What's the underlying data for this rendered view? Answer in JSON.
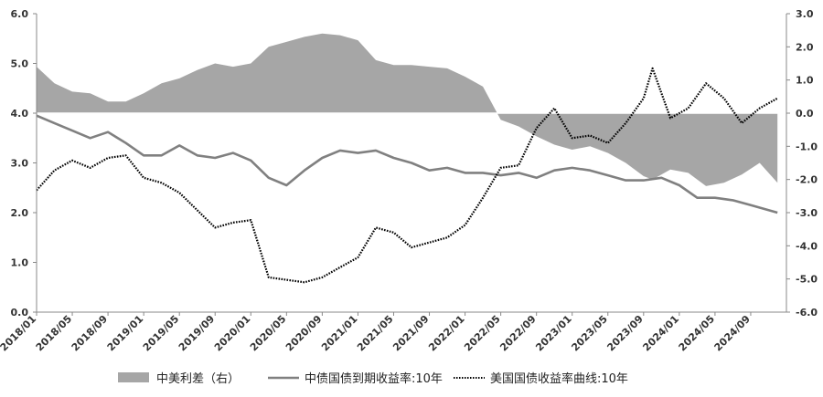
{
  "chart_data": {
    "type": "line",
    "title": "",
    "xlabel": "",
    "ylabel": "",
    "x_range": [
      "2018-01",
      "2024-12"
    ],
    "ylim_left": [
      0,
      6
    ],
    "ylim_right": [
      -6,
      3
    ],
    "y_ticks_left": [
      "6.0",
      "5.0",
      "4.0",
      "3.0",
      "2.0",
      "1.0",
      "0.0"
    ],
    "y_ticks_right": [
      "3.0",
      "2.0",
      "1.0",
      "0.0",
      "-1.0",
      "-2.0",
      "-3.0",
      "-4.0",
      "-5.0",
      "-6.0"
    ],
    "x_ticks": [
      "2018/01",
      "2018/05",
      "2018/09",
      "2019/01",
      "2019/05",
      "2019/09",
      "2020/01",
      "2020/05",
      "2020/09",
      "2021/01",
      "2021/05",
      "2021/09",
      "2022/01",
      "2022/05",
      "2022/09",
      "2023/01",
      "2023/05",
      "2023/09",
      "2024/01",
      "2024/05",
      "2024/09"
    ],
    "grid": false,
    "legend_position": "bottom",
    "legend": [
      "中美利差（右）",
      "中债国债到期收益率:10年",
      "美国国债收益率曲线:10年"
    ],
    "colors": {
      "spread": "#a6a6a6",
      "china": "#808080",
      "us": "#000000"
    },
    "series": [
      {
        "name": "中美利差（右）",
        "style": "area",
        "axis": "right",
        "x": [
          "2018-01",
          "2018-03",
          "2018-05",
          "2018-07",
          "2018-09",
          "2018-11",
          "2019-01",
          "2019-03",
          "2019-05",
          "2019-07",
          "2019-09",
          "2019-11",
          "2020-01",
          "2020-03",
          "2020-05",
          "2020-07",
          "2020-09",
          "2020-11",
          "2021-01",
          "2021-03",
          "2021-05",
          "2021-07",
          "2021-09",
          "2021-11",
          "2022-01",
          "2022-03",
          "2022-04",
          "2022-05",
          "2022-07",
          "2022-09",
          "2022-11",
          "2023-01",
          "2023-03",
          "2023-05",
          "2023-07",
          "2023-09",
          "2023-10",
          "2023-12",
          "2024-02",
          "2024-04",
          "2024-06",
          "2024-08",
          "2024-10",
          "2024-12"
        ],
        "values": [
          1.4,
          0.9,
          0.65,
          0.6,
          0.35,
          0.35,
          0.6,
          0.9,
          1.05,
          1.3,
          1.5,
          1.4,
          1.5,
          2.0,
          2.15,
          2.3,
          2.4,
          2.35,
          2.2,
          1.6,
          1.45,
          1.45,
          1.4,
          1.35,
          1.1,
          0.8,
          0.3,
          -0.2,
          -0.4,
          -0.7,
          -0.95,
          -1.1,
          -1.0,
          -1.2,
          -1.5,
          -1.9,
          -2.0,
          -1.7,
          -1.8,
          -2.2,
          -2.1,
          -1.85,
          -1.5,
          -2.1
        ]
      },
      {
        "name": "中债国债到期收益率:10年",
        "style": "solid",
        "axis": "left",
        "x": [
          "2018-01",
          "2018-03",
          "2018-05",
          "2018-07",
          "2018-09",
          "2018-11",
          "2019-01",
          "2019-03",
          "2019-05",
          "2019-07",
          "2019-09",
          "2019-11",
          "2020-01",
          "2020-03",
          "2020-05",
          "2020-07",
          "2020-09",
          "2020-11",
          "2021-01",
          "2021-03",
          "2021-05",
          "2021-07",
          "2021-09",
          "2021-11",
          "2022-01",
          "2022-03",
          "2022-05",
          "2022-07",
          "2022-09",
          "2022-11",
          "2023-01",
          "2023-03",
          "2023-05",
          "2023-07",
          "2023-09",
          "2023-11",
          "2024-01",
          "2024-03",
          "2024-05",
          "2024-07",
          "2024-09",
          "2024-11",
          "2024-12"
        ],
        "values": [
          3.95,
          3.8,
          3.65,
          3.5,
          3.62,
          3.4,
          3.15,
          3.15,
          3.35,
          3.15,
          3.1,
          3.2,
          3.05,
          2.7,
          2.55,
          2.85,
          3.1,
          3.25,
          3.2,
          3.25,
          3.1,
          3.0,
          2.85,
          2.9,
          2.8,
          2.8,
          2.75,
          2.8,
          2.7,
          2.85,
          2.9,
          2.85,
          2.75,
          2.65,
          2.65,
          2.7,
          2.55,
          2.3,
          2.3,
          2.25,
          2.15,
          2.05,
          2.0
        ]
      },
      {
        "name": "美国国债收益率曲线:10年",
        "style": "dotted",
        "axis": "left",
        "x": [
          "2018-01",
          "2018-03",
          "2018-05",
          "2018-07",
          "2018-09",
          "2018-11",
          "2019-01",
          "2019-03",
          "2019-05",
          "2019-07",
          "2019-09",
          "2019-11",
          "2020-01",
          "2020-03",
          "2020-05",
          "2020-07",
          "2020-09",
          "2020-11",
          "2021-01",
          "2021-03",
          "2021-05",
          "2021-07",
          "2021-09",
          "2021-11",
          "2022-01",
          "2022-03",
          "2022-05",
          "2022-07",
          "2022-09",
          "2022-11",
          "2023-01",
          "2023-03",
          "2023-05",
          "2023-07",
          "2023-09",
          "2023-10",
          "2023-12",
          "2024-02",
          "2024-04",
          "2024-06",
          "2024-08",
          "2024-10",
          "2024-12"
        ],
        "values": [
          2.45,
          2.85,
          3.05,
          2.9,
          3.1,
          3.15,
          2.7,
          2.6,
          2.4,
          2.05,
          1.7,
          1.8,
          1.85,
          0.7,
          0.65,
          0.6,
          0.7,
          0.9,
          1.1,
          1.7,
          1.6,
          1.3,
          1.4,
          1.5,
          1.75,
          2.3,
          2.9,
          2.95,
          3.7,
          4.1,
          3.5,
          3.55,
          3.4,
          3.8,
          4.3,
          4.9,
          3.9,
          4.1,
          4.6,
          4.3,
          3.8,
          4.1,
          4.3
        ]
      }
    ]
  }
}
